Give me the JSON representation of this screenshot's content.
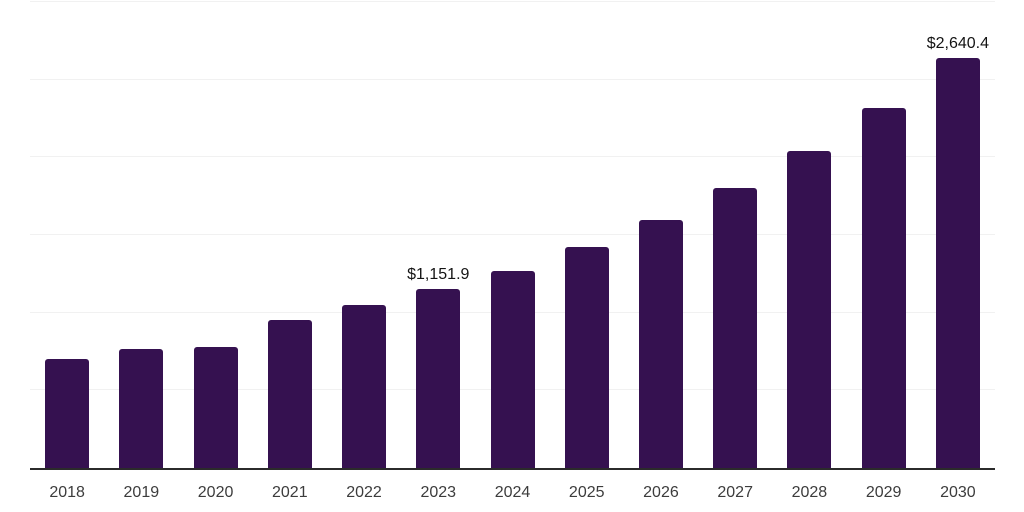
{
  "chart_data": {
    "type": "bar",
    "title": "",
    "xlabel": "",
    "ylabel": "",
    "categories": [
      "2018",
      "2019",
      "2020",
      "2021",
      "2022",
      "2023",
      "2024",
      "2025",
      "2026",
      "2027",
      "2028",
      "2029",
      "2030"
    ],
    "series": [
      {
        "name": "market-value-usd",
        "values": [
          705,
          765,
          780,
          950,
          1049,
          1151.9,
          1269,
          1423,
          1598,
          1803,
          2038,
          2316,
          2640.4
        ]
      }
    ],
    "data_labels": [
      null,
      null,
      null,
      null,
      null,
      "$1,151.9",
      null,
      null,
      null,
      null,
      null,
      null,
      "$2,640.4"
    ],
    "ylim": [
      0,
      3000
    ],
    "grid_step": 500,
    "grid": true,
    "legend": false,
    "y_tick_labels_visible": false
  },
  "style": {
    "bar_color": "#351150",
    "axis_color": "#2b2b2b",
    "gridline_color": "#f1f1f1",
    "tick_label_color": "#3c3c3c",
    "data_label_color": "#141414"
  }
}
